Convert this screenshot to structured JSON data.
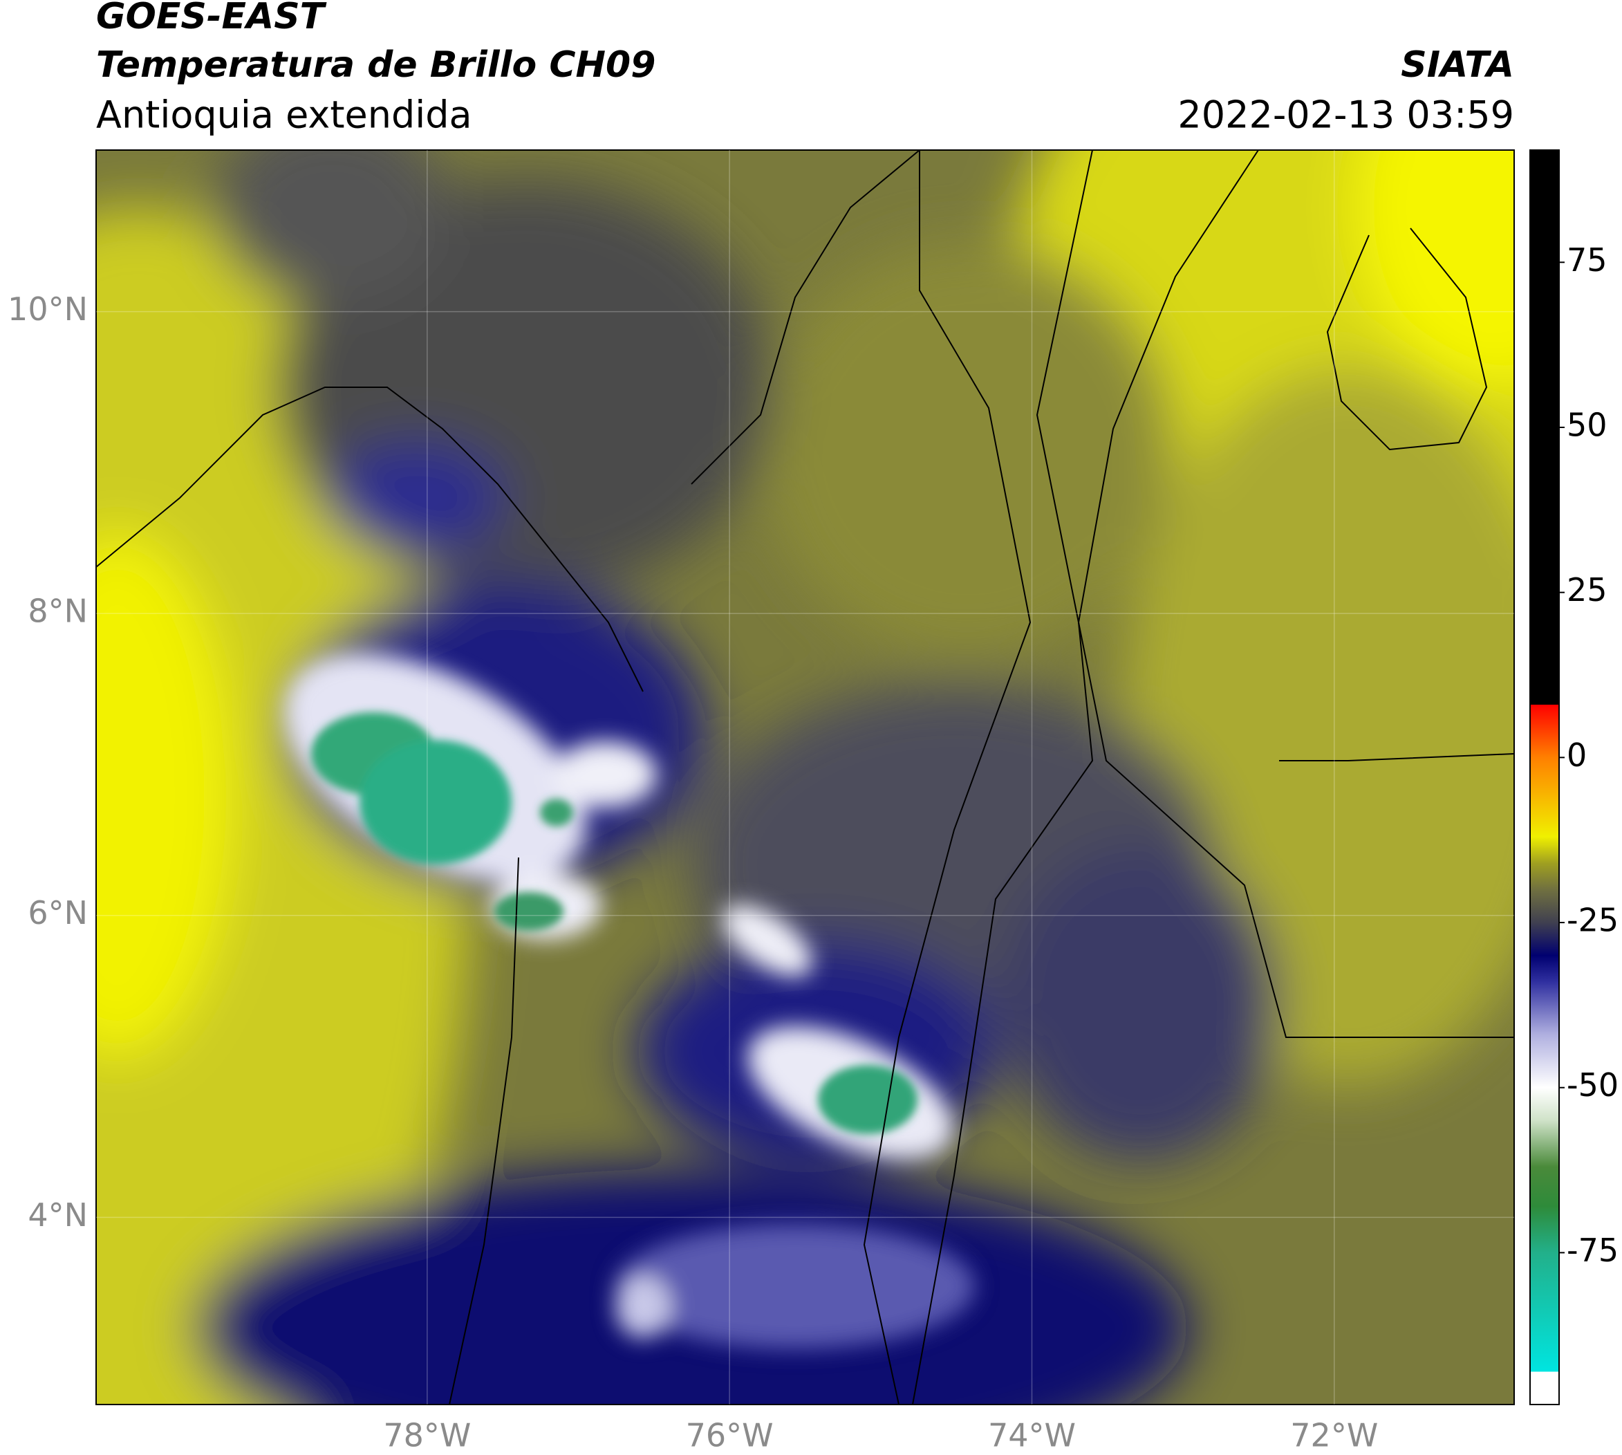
{
  "header": {
    "satellite": "GOES-EAST",
    "product": "Temperatura de Brillo CH09",
    "region": "Antioquia extendida",
    "source": "SIATA",
    "timestamp": "2022-02-13 03:59"
  },
  "map": {
    "lon_range": [
      -80.19,
      -70.81
    ],
    "lat_range": [
      2.76,
      11.07
    ],
    "lon_ticks": [
      {
        "value": -78,
        "label": "78°W"
      },
      {
        "value": -76,
        "label": "76°W"
      },
      {
        "value": -74,
        "label": "74°W"
      },
      {
        "value": -72,
        "label": "72°W"
      }
    ],
    "lat_ticks": [
      {
        "value": 10,
        "label": "10°N"
      },
      {
        "value": 8,
        "label": "8°N"
      },
      {
        "value": 6,
        "label": "6°N"
      },
      {
        "value": 4,
        "label": "4°N"
      }
    ],
    "grid": true
  },
  "colorbar": {
    "range": [
      -98,
      92
    ],
    "ticks": [
      75,
      50,
      25,
      0,
      -25,
      -50,
      -75
    ],
    "stops": [
      {
        "value": -98,
        "color": "#ffffff"
      },
      {
        "value": -93,
        "color": "#ffffff"
      },
      {
        "value": -93,
        "color": "#00e5e0"
      },
      {
        "value": -75,
        "color": "#22b08a"
      },
      {
        "value": -68,
        "color": "#2e8b3a"
      },
      {
        "value": -62,
        "color": "#4a8a3a"
      },
      {
        "value": -55,
        "color": "#cfe2c8"
      },
      {
        "value": -50,
        "color": "#ffffff"
      },
      {
        "value": -42,
        "color": "#b0b0e0"
      },
      {
        "value": -34,
        "color": "#3030a0"
      },
      {
        "value": -30,
        "color": "#000070"
      },
      {
        "value": -25,
        "color": "#404050"
      },
      {
        "value": -20,
        "color": "#707040"
      },
      {
        "value": -16,
        "color": "#a0a020"
      },
      {
        "value": -12,
        "color": "#f0f000"
      },
      {
        "value": 0,
        "color": "#ff8000"
      },
      {
        "value": 8,
        "color": "#ff0000"
      },
      {
        "value": 8,
        "color": "#000000"
      },
      {
        "value": 92,
        "color": "#000000"
      }
    ]
  }
}
